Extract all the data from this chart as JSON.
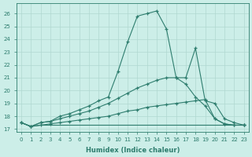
{
  "xlabel": "Humidex (Indice chaleur)",
  "background_color": "#cceee8",
  "grid_color": "#b0d8d0",
  "line_color": "#2e7d6e",
  "xlim": [
    -0.5,
    23.5
  ],
  "ylim": [
    16.8,
    26.8
  ],
  "yticks": [
    17,
    18,
    19,
    20,
    21,
    22,
    23,
    24,
    25,
    26
  ],
  "xticks": [
    0,
    1,
    2,
    3,
    4,
    5,
    6,
    7,
    8,
    9,
    10,
    11,
    12,
    13,
    14,
    15,
    16,
    17,
    18,
    19,
    20,
    21,
    22,
    23
  ],
  "series": [
    {
      "x": [
        0,
        1,
        2,
        3,
        4,
        5,
        6,
        7,
        8,
        9,
        10,
        11,
        12,
        13,
        14,
        15,
        16,
        17,
        18,
        19,
        20,
        21,
        22,
        23
      ],
      "y": [
        17.5,
        17.2,
        17.3,
        17.3,
        17.3,
        17.3,
        17.3,
        17.3,
        17.3,
        17.3,
        17.3,
        17.3,
        17.3,
        17.3,
        17.3,
        17.3,
        17.3,
        17.3,
        17.3,
        17.3,
        17.3,
        17.3,
        17.3,
        17.3
      ],
      "marker": false
    },
    {
      "x": [
        0,
        1,
        2,
        3,
        4,
        5,
        6,
        7,
        8,
        9,
        10,
        11,
        12,
        13,
        14,
        15,
        16,
        17,
        18,
        19,
        20,
        21,
        22,
        23
      ],
      "y": [
        17.5,
        17.2,
        17.3,
        17.4,
        17.5,
        17.6,
        17.7,
        17.8,
        17.9,
        18.0,
        18.2,
        18.4,
        18.5,
        18.7,
        18.8,
        18.9,
        19.0,
        19.1,
        19.2,
        19.3,
        17.8,
        17.4,
        17.3,
        17.3
      ],
      "marker": true
    },
    {
      "x": [
        0,
        1,
        2,
        3,
        4,
        5,
        6,
        7,
        8,
        9,
        10,
        11,
        12,
        13,
        14,
        15,
        16,
        17,
        18,
        19,
        20,
        21,
        22,
        23
      ],
      "y": [
        17.5,
        17.2,
        17.5,
        17.6,
        17.8,
        18.0,
        18.2,
        18.4,
        18.7,
        19.0,
        19.4,
        19.8,
        20.2,
        20.5,
        20.8,
        21.0,
        21.0,
        20.5,
        19.5,
        18.8,
        17.8,
        17.4,
        17.3,
        17.3
      ],
      "marker": true
    },
    {
      "x": [
        0,
        1,
        2,
        3,
        4,
        5,
        6,
        7,
        8,
        9,
        10,
        11,
        12,
        13,
        14,
        15,
        16,
        17,
        18,
        19,
        20,
        21,
        22,
        23
      ],
      "y": [
        17.5,
        17.2,
        17.5,
        17.6,
        18.0,
        18.2,
        18.5,
        18.8,
        19.2,
        19.5,
        21.5,
        23.8,
        25.8,
        26.0,
        26.2,
        24.8,
        21.0,
        21.0,
        23.3,
        19.2,
        19.0,
        17.8,
        17.5,
        17.3
      ],
      "marker": true
    }
  ]
}
